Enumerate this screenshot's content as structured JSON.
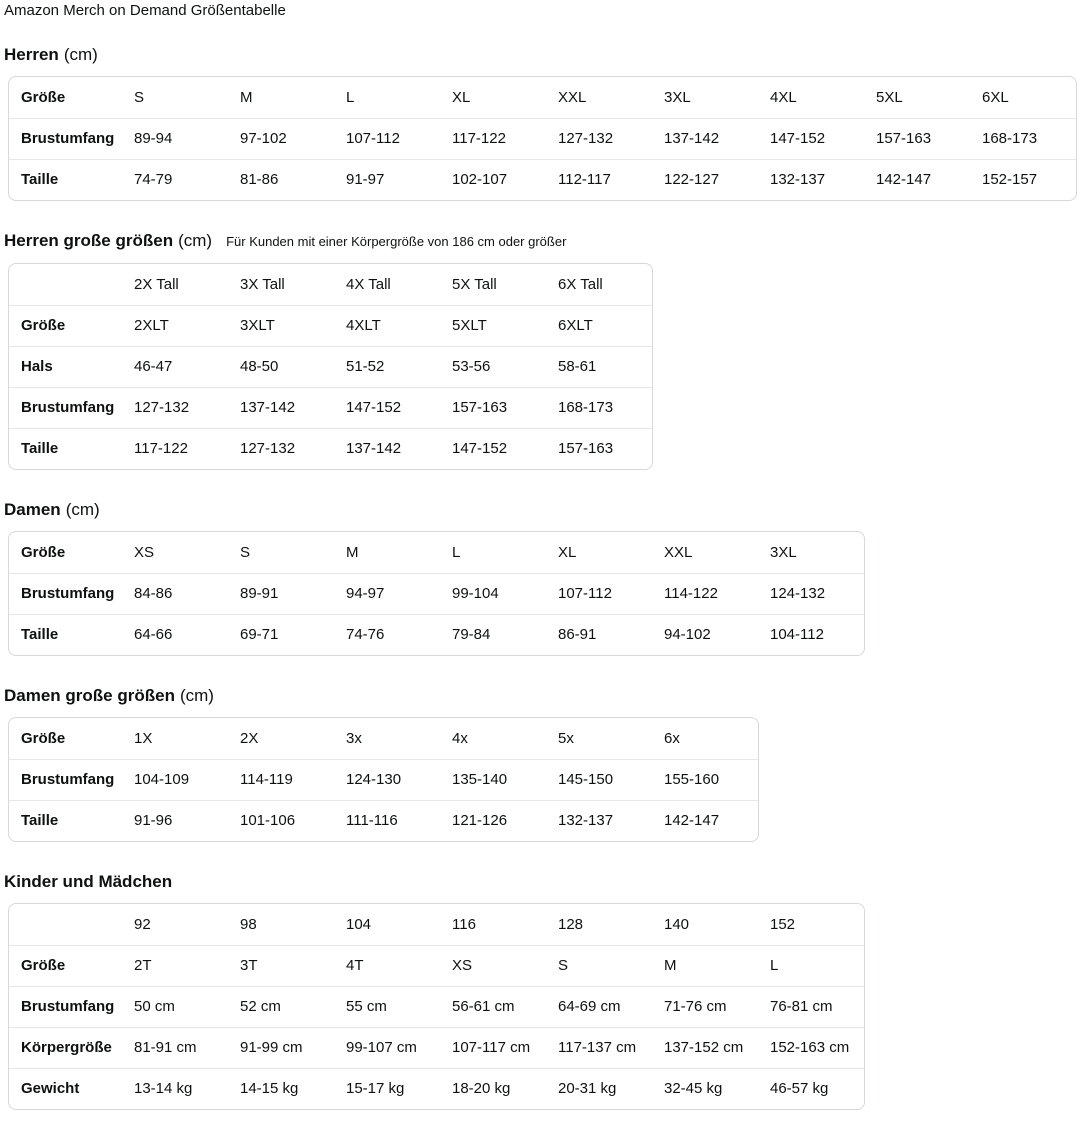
{
  "page": {
    "title": "Amazon Merch on Demand Größentabelle"
  },
  "colors": {
    "text": "#0f1111",
    "table_border": "#d5d9d9",
    "row_divider": "#e7e7e7",
    "background": "#ffffff"
  },
  "sections": [
    {
      "heading": "Herren",
      "heading_suffix": "(cm)",
      "note": "",
      "rows": [
        {
          "label": "Größe",
          "cells": [
            "S",
            "M",
            "L",
            "XL",
            "XXL",
            "3XL",
            "4XL",
            "5XL",
            "6XL"
          ]
        },
        {
          "label": "Brustumfang",
          "cells": [
            "89-94",
            "97-102",
            "107-112",
            "117-122",
            "127-132",
            "137-142",
            "147-152",
            "157-163",
            "168-173"
          ]
        },
        {
          "label": "Taille",
          "cells": [
            "74-79",
            "81-86",
            "91-97",
            "102-107",
            "112-117",
            "122-127",
            "132-137",
            "142-147",
            "152-157"
          ]
        }
      ]
    },
    {
      "heading": "Herren große größen",
      "heading_suffix": "(cm)",
      "note": "Für Kunden mit einer Körpergröße von 186 cm oder größer",
      "rows": [
        {
          "label": "",
          "cells": [
            "2X Tall",
            "3X Tall",
            "4X Tall",
            "5X Tall",
            "6X Tall"
          ]
        },
        {
          "label": "Größe",
          "cells": [
            "2XLT",
            "3XLT",
            "4XLT",
            "5XLT",
            "6XLT"
          ]
        },
        {
          "label": "Hals",
          "cells": [
            "46-47",
            "48-50",
            "51-52",
            "53-56",
            "58-61"
          ]
        },
        {
          "label": "Brustumfang",
          "cells": [
            "127-132",
            "137-142",
            "147-152",
            "157-163",
            "168-173"
          ]
        },
        {
          "label": "Taille",
          "cells": [
            "117-122",
            "127-132",
            "137-142",
            "147-152",
            "157-163"
          ]
        }
      ]
    },
    {
      "heading": "Damen",
      "heading_suffix": "(cm)",
      "note": "",
      "rows": [
        {
          "label": "Größe",
          "cells": [
            "XS",
            "S",
            "M",
            "L",
            "XL",
            "XXL",
            "3XL"
          ]
        },
        {
          "label": "Brustumfang",
          "cells": [
            "84-86",
            "89-91",
            "94-97",
            "99-104",
            "107-112",
            "114-122",
            "124-132"
          ]
        },
        {
          "label": "Taille",
          "cells": [
            "64-66",
            "69-71",
            "74-76",
            "79-84",
            "86-91",
            "94-102",
            "104-112"
          ]
        }
      ]
    },
    {
      "heading": "Damen große größen",
      "heading_suffix": "(cm)",
      "note": "",
      "rows": [
        {
          "label": "Größe",
          "cells": [
            "1X",
            "2X",
            "3x",
            "4x",
            "5x",
            "6x"
          ]
        },
        {
          "label": "Brustumfang",
          "cells": [
            "104-109",
            "114-119",
            "124-130",
            "135-140",
            "145-150",
            "155-160"
          ]
        },
        {
          "label": "Taille",
          "cells": [
            "91-96",
            "101-106",
            "111-116",
            "121-126",
            "132-137",
            "142-147"
          ]
        }
      ]
    },
    {
      "heading": "Kinder und Mädchen",
      "heading_suffix": "",
      "note": "",
      "rows": [
        {
          "label": "",
          "cells": [
            "92",
            "98",
            "104",
            "116",
            "128",
            "140",
            "152"
          ]
        },
        {
          "label": "Größe",
          "cells": [
            "2T",
            "3T",
            "4T",
            "XS",
            "S",
            "M",
            "L"
          ]
        },
        {
          "label": "Brustumfang",
          "cells": [
            "50 cm",
            "52 cm",
            "55 cm",
            "56-61 cm",
            "64-69 cm",
            "71-76 cm",
            "76-81 cm"
          ]
        },
        {
          "label": "Körpergröße",
          "cells": [
            "81-91 cm",
            "91-99 cm",
            "99-107 cm",
            "107-117 cm",
            "117-137 cm",
            "137-152 cm",
            "152-163 cm"
          ]
        },
        {
          "label": "Gewicht",
          "cells": [
            "13-14 kg",
            "14-15 kg",
            "15-17 kg",
            "18-20 kg",
            "20-31 kg",
            "32-45 kg",
            "46-57 kg"
          ]
        }
      ]
    }
  ]
}
